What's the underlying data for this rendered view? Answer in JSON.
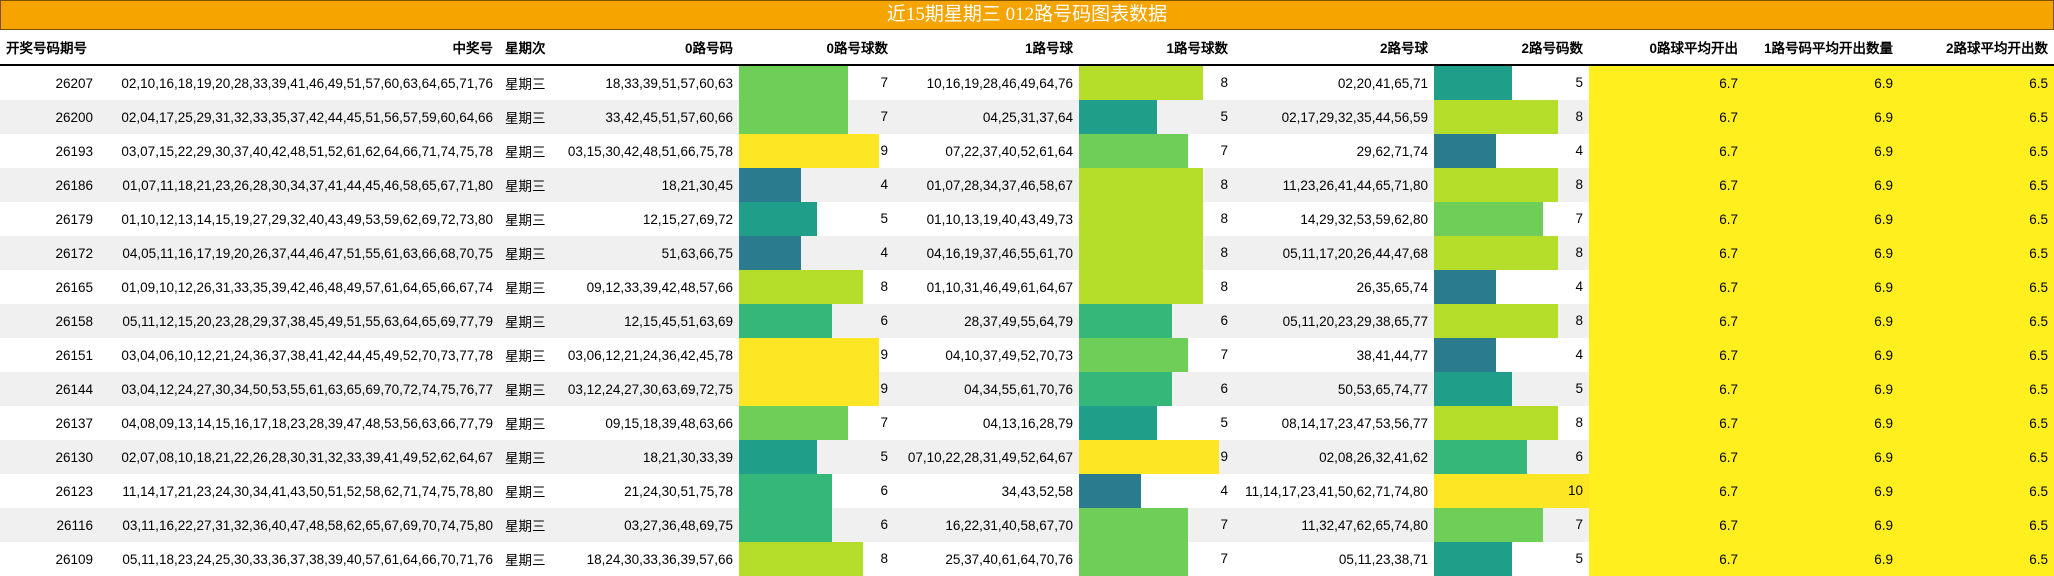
{
  "title": "近15期星期三 012路号码图表数据",
  "headers": [
    "开奖号码期号",
    "中奖号",
    "星期次",
    "0路号码",
    "0路号球数",
    "1路号球",
    "1路号球数",
    "2路号球",
    "2路号码数",
    "0路球平均开出",
    "1路号码平均开出数量",
    "2路球平均开出数"
  ],
  "rows": [
    {
      "period": "26207",
      "numbers": "02,10,16,18,19,20,28,33,39,41,46,49,51,57,60,63,64,65,71,76",
      "weekday": "星期三",
      "r0": "18,33,39,51,57,60,63",
      "c0": 7,
      "r1": "10,16,19,28,46,49,64,76",
      "c1": 8,
      "r2": "02,20,41,65,71",
      "c2": 5,
      "a0": "6.7",
      "a1": "6.9",
      "a2": "6.5"
    },
    {
      "period": "26200",
      "numbers": "02,04,17,25,29,31,32,33,35,37,42,44,45,51,56,57,59,60,64,66",
      "weekday": "星期三",
      "r0": "33,42,45,51,57,60,66",
      "c0": 7,
      "r1": "04,25,31,37,64",
      "c1": 5,
      "r2": "02,17,29,32,35,44,56,59",
      "c2": 8,
      "a0": "6.7",
      "a1": "6.9",
      "a2": "6.5"
    },
    {
      "period": "26193",
      "numbers": "03,07,15,22,29,30,37,40,42,48,51,52,61,62,64,66,71,74,75,78",
      "weekday": "星期三",
      "r0": "03,15,30,42,48,51,66,75,78",
      "c0": 9,
      "r1": "07,22,37,40,52,61,64",
      "c1": 7,
      "r2": "29,62,71,74",
      "c2": 4,
      "a0": "6.7",
      "a1": "6.9",
      "a2": "6.5"
    },
    {
      "period": "26186",
      "numbers": "01,07,11,18,21,23,26,28,30,34,37,41,44,45,46,58,65,67,71,80",
      "weekday": "星期三",
      "r0": "18,21,30,45",
      "c0": 4,
      "r1": "01,07,28,34,37,46,58,67",
      "c1": 8,
      "r2": "11,23,26,41,44,65,71,80",
      "c2": 8,
      "a0": "6.7",
      "a1": "6.9",
      "a2": "6.5"
    },
    {
      "period": "26179",
      "numbers": "01,10,12,13,14,15,19,27,29,32,40,43,49,53,59,62,69,72,73,80",
      "weekday": "星期三",
      "r0": "12,15,27,69,72",
      "c0": 5,
      "r1": "01,10,13,19,40,43,49,73",
      "c1": 8,
      "r2": "14,29,32,53,59,62,80",
      "c2": 7,
      "a0": "6.7",
      "a1": "6.9",
      "a2": "6.5"
    },
    {
      "period": "26172",
      "numbers": "04,05,11,16,17,19,20,26,37,44,46,47,51,55,61,63,66,68,70,75",
      "weekday": "星期三",
      "r0": "51,63,66,75",
      "c0": 4,
      "r1": "04,16,19,37,46,55,61,70",
      "c1": 8,
      "r2": "05,11,17,20,26,44,47,68",
      "c2": 8,
      "a0": "6.7",
      "a1": "6.9",
      "a2": "6.5"
    },
    {
      "period": "26165",
      "numbers": "01,09,10,12,26,31,33,35,39,42,46,48,49,57,61,64,65,66,67,74",
      "weekday": "星期三",
      "r0": "09,12,33,39,42,48,57,66",
      "c0": 8,
      "r1": "01,10,31,46,49,61,64,67",
      "c1": 8,
      "r2": "26,35,65,74",
      "c2": 4,
      "a0": "6.7",
      "a1": "6.9",
      "a2": "6.5"
    },
    {
      "period": "26158",
      "numbers": "05,11,12,15,20,23,28,29,37,38,45,49,51,55,63,64,65,69,77,79",
      "weekday": "星期三",
      "r0": "12,15,45,51,63,69",
      "c0": 6,
      "r1": "28,37,49,55,64,79",
      "c1": 6,
      "r2": "05,11,20,23,29,38,65,77",
      "c2": 8,
      "a0": "6.7",
      "a1": "6.9",
      "a2": "6.5"
    },
    {
      "period": "26151",
      "numbers": "03,04,06,10,12,21,24,36,37,38,41,42,44,45,49,52,70,73,77,78",
      "weekday": "星期三",
      "r0": "03,06,12,21,24,36,42,45,78",
      "c0": 9,
      "r1": "04,10,37,49,52,70,73",
      "c1": 7,
      "r2": "38,41,44,77",
      "c2": 4,
      "a0": "6.7",
      "a1": "6.9",
      "a2": "6.5"
    },
    {
      "period": "26144",
      "numbers": "03,04,12,24,27,30,34,50,53,55,61,63,65,69,70,72,74,75,76,77",
      "weekday": "星期三",
      "r0": "03,12,24,27,30,63,69,72,75",
      "c0": 9,
      "r1": "04,34,55,61,70,76",
      "c1": 6,
      "r2": "50,53,65,74,77",
      "c2": 5,
      "a0": "6.7",
      "a1": "6.9",
      "a2": "6.5"
    },
    {
      "period": "26137",
      "numbers": "04,08,09,13,14,15,16,17,18,23,28,39,47,48,53,56,63,66,77,79",
      "weekday": "星期三",
      "r0": "09,15,18,39,48,63,66",
      "c0": 7,
      "r1": "04,13,16,28,79",
      "c1": 5,
      "r2": "08,14,17,23,47,53,56,77",
      "c2": 8,
      "a0": "6.7",
      "a1": "6.9",
      "a2": "6.5"
    },
    {
      "period": "26130",
      "numbers": "02,07,08,10,18,21,22,26,28,30,31,32,33,39,41,49,52,62,64,67",
      "weekday": "星期三",
      "r0": "18,21,30,33,39",
      "c0": 5,
      "r1": "07,10,22,28,31,49,52,64,67",
      "c1": 9,
      "r2": "02,08,26,32,41,62",
      "c2": 6,
      "a0": "6.7",
      "a1": "6.9",
      "a2": "6.5"
    },
    {
      "period": "26123",
      "numbers": "11,14,17,21,23,24,30,34,41,43,50,51,52,58,62,71,74,75,78,80",
      "weekday": "星期三",
      "r0": "21,24,30,51,75,78",
      "c0": 6,
      "r1": "34,43,52,58",
      "c1": 4,
      "r2": "11,14,17,23,41,50,62,71,74,80",
      "c2": 10,
      "a0": "6.7",
      "a1": "6.9",
      "a2": "6.5"
    },
    {
      "period": "26116",
      "numbers": "03,11,16,22,27,31,32,36,40,47,48,58,62,65,67,69,70,74,75,80",
      "weekday": "星期三",
      "r0": "03,27,36,48,69,75",
      "c0": 6,
      "r1": "16,22,31,40,58,67,70",
      "c1": 7,
      "r2": "11,32,47,62,65,74,80",
      "c2": 7,
      "a0": "6.7",
      "a1": "6.9",
      "a2": "6.5"
    },
    {
      "period": "26109",
      "numbers": "05,11,18,23,24,25,30,33,36,37,38,39,40,57,61,64,66,70,71,76",
      "weekday": "星期三",
      "r0": "18,24,30,33,36,39,57,66",
      "c0": 8,
      "r1": "25,37,40,61,64,70,76",
      "c1": 7,
      "r2": "05,11,23,38,71",
      "c2": 5,
      "a0": "6.7",
      "a1": "6.9",
      "a2": "6.5"
    }
  ],
  "bar_colors": {
    "4": "#2a7b8e",
    "5": "#1f9e89",
    "6": "#35b779",
    "7": "#6ece58",
    "8": "#b5de2b",
    "9": "#fde725",
    "10": "#fde725"
  },
  "average_color": "#ffef1f",
  "header_color": "#f5a400"
}
